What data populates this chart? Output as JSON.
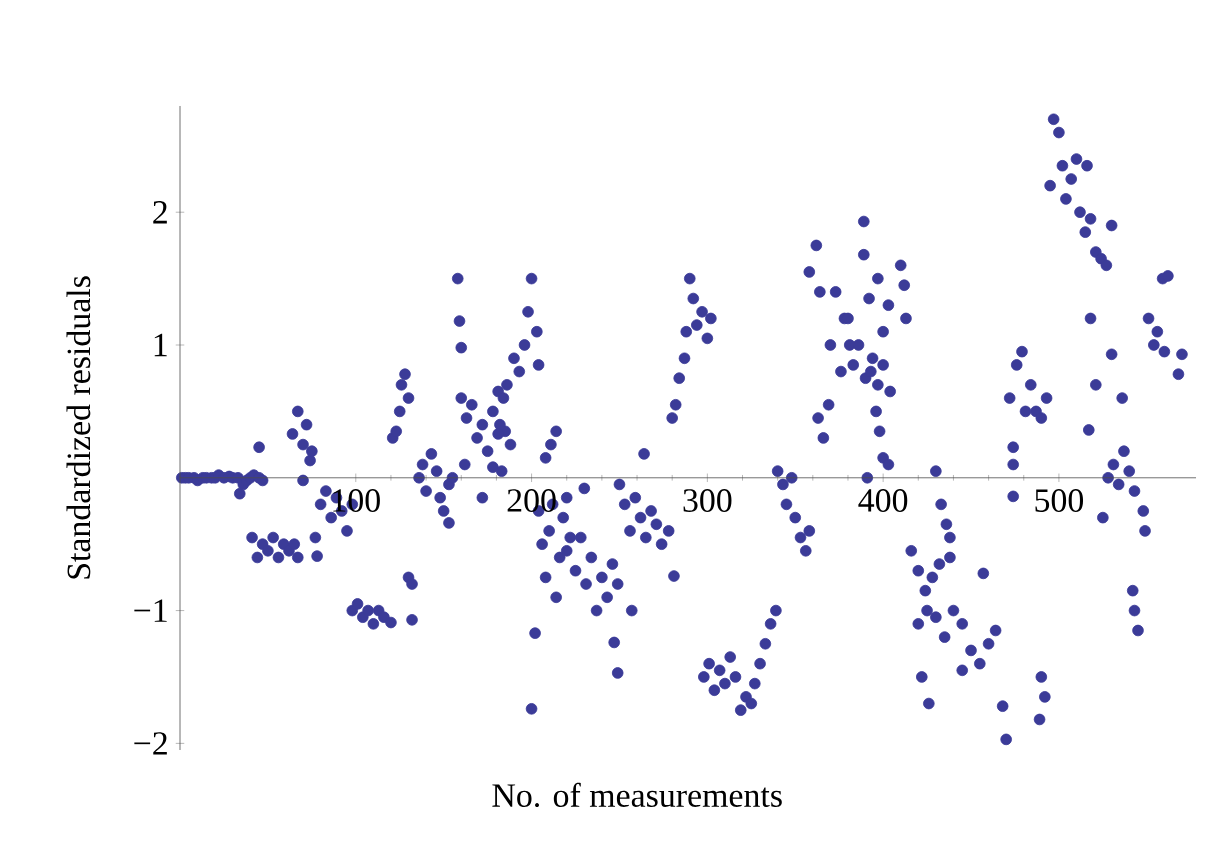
{
  "chart_data": {
    "type": "scatter",
    "xlabel": "No. of measurements",
    "ylabel": "Standardized residuals",
    "xlim": [
      0,
      578
    ],
    "ylim": [
      -2.05,
      2.8
    ],
    "xticks": [
      100,
      200,
      300,
      400,
      500
    ],
    "yticks": [
      {
        "value": -2,
        "label": "−2"
      },
      {
        "value": -1,
        "label": "−1"
      },
      1,
      2
    ],
    "series": [
      {
        "color": "#3b3b98",
        "x": [
          1,
          3,
          5,
          8,
          10,
          13,
          15,
          18,
          20,
          22,
          25,
          28,
          30,
          33,
          36,
          38,
          40,
          42,
          45,
          47,
          45,
          34,
          41,
          44,
          47,
          50,
          53,
          56,
          59,
          62,
          65,
          67,
          64,
          67,
          70,
          72,
          74,
          75,
          70,
          77,
          80,
          83,
          86,
          89,
          92,
          95,
          98,
          78,
          98,
          101,
          104,
          107,
          110,
          113,
          116,
          120,
          132,
          130,
          132,
          121,
          123,
          125,
          126,
          128,
          130,
          136,
          138,
          140,
          143,
          146,
          148,
          150,
          153,
          155,
          153,
          158,
          159,
          160,
          160,
          163,
          166,
          169,
          172,
          175,
          178,
          181,
          185,
          188,
          162,
          172,
          178,
          182,
          184,
          186,
          190,
          193,
          196,
          198,
          200,
          203,
          204,
          181,
          183,
          208,
          211,
          214,
          204,
          206,
          208,
          210,
          212,
          214,
          216,
          218,
          220,
          222,
          202,
          200,
          220,
          225,
          228,
          231,
          234,
          237,
          240,
          243,
          246,
          249,
          230,
          247,
          249,
          257,
          250,
          253,
          256,
          259,
          262,
          265,
          268,
          271,
          274,
          278,
          264,
          281,
          280,
          282,
          284,
          287,
          288,
          290,
          292,
          294,
          297,
          300,
          302,
          298,
          301,
          304,
          307,
          310,
          313,
          316,
          319,
          322,
          325,
          327,
          330,
          333,
          336,
          339,
          340,
          343,
          345,
          348,
          350,
          353,
          356,
          358,
          358,
          362,
          364,
          363,
          366,
          369,
          370,
          373,
          376,
          378,
          381,
          380,
          383,
          386,
          390,
          392,
          394,
          397,
          400,
          403,
          389,
          389,
          393,
          397,
          400,
          404,
          410,
          412,
          413,
          396,
          398,
          400,
          403,
          391,
          430,
          433,
          436,
          438,
          416,
          420,
          424,
          428,
          432,
          438,
          457,
          420,
          425,
          430,
          435,
          440,
          445,
          450,
          455,
          460,
          464,
          422,
          426,
          445,
          468,
          470,
          490,
          492,
          489,
          472,
          474,
          476,
          479,
          481,
          484,
          487,
          490,
          493,
          474,
          474,
          495,
          497,
          500,
          502,
          504,
          507,
          510,
          512,
          515,
          518,
          521,
          524,
          527,
          530,
          516,
          518,
          530,
          521,
          536,
          517,
          528,
          531,
          534,
          537,
          540,
          543,
          525,
          548,
          549,
          542,
          543,
          545,
          551,
          554,
          556,
          559,
          562,
          560,
          570,
          568
        ],
        "values": [
          0,
          0,
          0,
          0,
          -0.02,
          0,
          0,
          0,
          0,
          0.02,
          0,
          0.01,
          0,
          0,
          -0.05,
          -0.02,
          0,
          0.02,
          0,
          -0.02,
          0.23,
          -0.12,
          -0.45,
          -0.6,
          -0.5,
          -0.55,
          -0.45,
          -0.6,
          -0.5,
          -0.55,
          -0.5,
          -0.6,
          0.33,
          0.5,
          0.25,
          0.4,
          0.13,
          0.2,
          -0.02,
          -0.45,
          -0.2,
          -0.1,
          -0.3,
          -0.15,
          -0.25,
          -0.4,
          -0.2,
          -0.59,
          -1.0,
          -0.95,
          -1.05,
          -1.0,
          -1.1,
          -1.0,
          -1.05,
          -1.09,
          -1.07,
          -0.75,
          -0.8,
          0.3,
          0.35,
          0.5,
          0.7,
          0.78,
          0.6,
          0.0,
          0.1,
          -0.1,
          0.18,
          0.05,
          -0.15,
          -0.25,
          -0.05,
          0.0,
          -0.34,
          1.5,
          1.18,
          0.98,
          0.6,
          0.45,
          0.55,
          0.3,
          0.4,
          0.2,
          0.5,
          0.65,
          0.35,
          0.25,
          0.1,
          -0.15,
          0.08,
          0.4,
          0.6,
          0.7,
          0.9,
          0.8,
          1.0,
          1.25,
          1.5,
          1.1,
          0.85,
          0.33,
          0.05,
          0.15,
          0.25,
          0.35,
          -0.25,
          -0.5,
          -0.75,
          -0.4,
          -0.2,
          -0.9,
          -0.6,
          -0.3,
          -0.15,
          -0.45,
          -1.17,
          -1.74,
          -0.55,
          -0.7,
          -0.45,
          -0.8,
          -0.6,
          -1.0,
          -0.75,
          -0.9,
          -0.65,
          -0.8,
          -0.08,
          -1.24,
          -1.47,
          -1.0,
          -0.05,
          -0.2,
          -0.4,
          -0.15,
          -0.3,
          -0.45,
          -0.25,
          -0.35,
          -0.5,
          -0.4,
          0.18,
          -0.74,
          0.45,
          0.55,
          0.75,
          0.9,
          1.1,
          1.5,
          1.35,
          1.15,
          1.25,
          1.05,
          1.2,
          -1.5,
          -1.4,
          -1.6,
          -1.45,
          -1.55,
          -1.35,
          -1.5,
          -1.75,
          -1.65,
          -1.7,
          -1.55,
          -1.4,
          -1.25,
          -1.1,
          -1.0,
          0.05,
          -0.05,
          -0.2,
          0.0,
          -0.3,
          -0.45,
          -0.55,
          -0.4,
          1.55,
          1.75,
          1.4,
          0.45,
          0.3,
          0.55,
          1.0,
          1.4,
          0.8,
          1.2,
          1.0,
          1.2,
          0.85,
          1.0,
          0.75,
          1.35,
          0.9,
          1.5,
          1.1,
          1.3,
          1.93,
          1.68,
          0.8,
          0.7,
          0.85,
          0.65,
          1.6,
          1.45,
          1.2,
          0.5,
          0.35,
          0.15,
          0.1,
          0.0,
          0.05,
          -0.2,
          -0.35,
          -0.45,
          -0.55,
          -0.7,
          -0.85,
          -0.75,
          -0.65,
          -0.6,
          -0.72,
          -1.1,
          -1.0,
          -1.05,
          -1.2,
          -1.0,
          -1.1,
          -1.3,
          -1.4,
          -1.25,
          -1.15,
          -1.5,
          -1.7,
          -1.45,
          -1.72,
          -1.97,
          -1.5,
          -1.65,
          -1.82,
          0.6,
          0.23,
          0.85,
          0.95,
          0.5,
          0.7,
          0.5,
          0.45,
          0.6,
          0.1,
          -0.14,
          2.2,
          2.7,
          2.6,
          2.35,
          2.1,
          2.25,
          2.4,
          2.0,
          1.85,
          1.95,
          1.7,
          1.65,
          1.6,
          1.9,
          2.35,
          1.2,
          0.93,
          0.7,
          0.6,
          0.36,
          0.0,
          0.1,
          -0.05,
          0.2,
          0.05,
          -0.1,
          -0.3,
          -0.25,
          -0.4,
          -0.85,
          -1.0,
          -1.15,
          1.2,
          1.0,
          1.1,
          1.5,
          1.52,
          0.95,
          0.93,
          0.78
        ]
      }
    ]
  }
}
